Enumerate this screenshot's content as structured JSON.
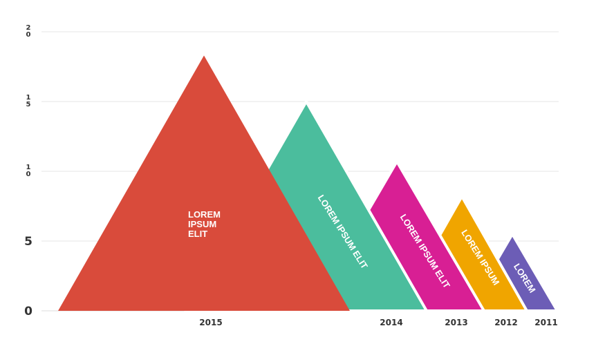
{
  "chart_data": {
    "type": "area",
    "title": "",
    "xlabel": "",
    "ylabel": "",
    "ylim": [
      0,
      20
    ],
    "grid": true,
    "y_ticks": [
      "0",
      "5",
      "1\n0",
      "1\n5",
      "2\n0"
    ],
    "categories": [
      "2015",
      "2014",
      "2013",
      "2012",
      "2011"
    ],
    "values": [
      18.3,
      15.0,
      10.7,
      8.2,
      5.5
    ],
    "colors": [
      "#d94b3b",
      "#4bbd9d",
      "#d81f94",
      "#f0a500",
      "#6c5db6"
    ],
    "labels": [
      "LOREM\nIPSUM\nELIT",
      "LOREM IPSUM ELIT",
      "LOREM IPSUM ELIT",
      "LOREM IPSUM",
      "LOREM"
    ]
  }
}
